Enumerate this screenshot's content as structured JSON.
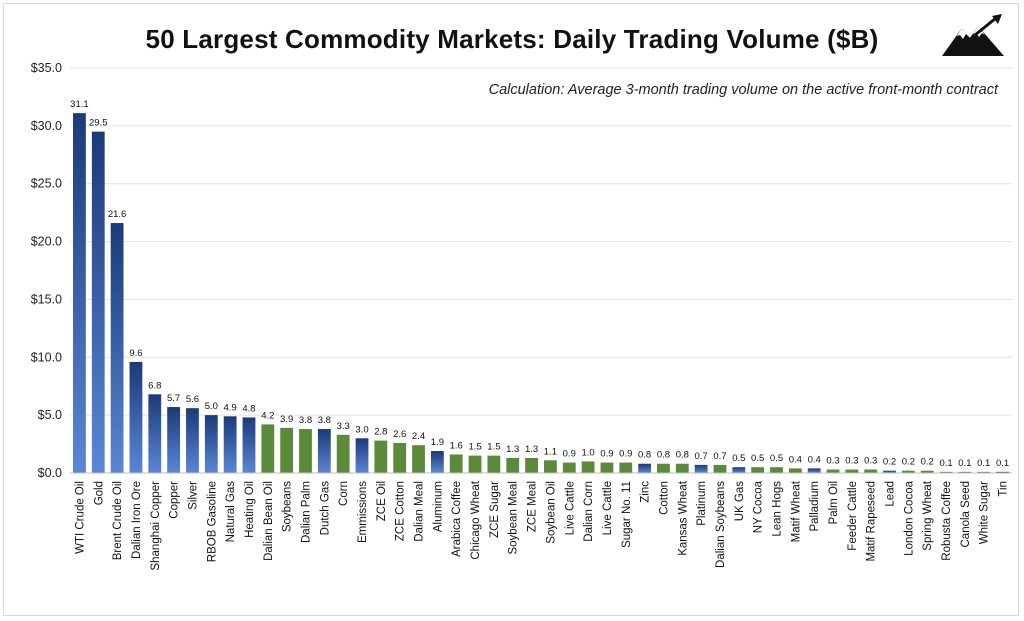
{
  "title": "50 Largest Commodity Markets: Daily Trading Volume ($B)",
  "subtitle": "Calculation: Average 3-month trading volume on the active front-month contract",
  "colors": {
    "blue_dark": "#1b3a78",
    "blue_light": "#5b86d6",
    "green": "#5a8a3a",
    "grid": "#e3e3e3",
    "axis": "#bfbfbf"
  },
  "logo_icon": "mountain-arrow-icon",
  "chart_data": {
    "type": "bar",
    "ylim": [
      0,
      35
    ],
    "yticks": [
      0,
      5,
      10,
      15,
      20,
      25,
      30,
      35
    ],
    "ytick_labels": [
      "$0.0",
      "$5.0",
      "$10.0",
      "$15.0",
      "$20.0",
      "$25.0",
      "$30.0",
      "$35.0"
    ],
    "grid": true,
    "categories": [
      "WTI Crude Oil",
      "Gold",
      "Brent Crude Oil",
      "Dalian Iron Ore",
      "Shanghai Copper",
      "Copper",
      "Silver",
      "RBOB Gasoline",
      "Natural Gas",
      "Heating Oil",
      "Dalian Bean Oil",
      "Soybeans",
      "Dalian Palm",
      "Dutch Gas",
      "Corn",
      "Emmissions",
      "ZCE Oil",
      "ZCE Cotton",
      "Dalian Meal",
      "Aluminum",
      "Arabica Coffee",
      "Chicago Wheat",
      "ZCE Sugar",
      "Soybean Meal",
      "ZCE Meal",
      "Soybean Oil",
      "Live Cattle",
      "Dalian Corn",
      "Live Cattle",
      "Sugar No. 11",
      "Zinc",
      "Cotton",
      "Kansas Wheat",
      "Platinum",
      "Dalian Soybeans",
      "UK Gas",
      "NY Cocoa",
      "Lean Hogs",
      "Matif Wheat",
      "Palladium",
      "Palm Oil",
      "Feeder Cattle",
      "Matif Rapeseed",
      "Lead",
      "London Cocoa",
      "Spring Wheat",
      "Robusta Coffee",
      "Canola Seed",
      "White Sugar",
      "Tin"
    ],
    "values": [
      31.1,
      29.5,
      21.6,
      9.6,
      6.8,
      5.7,
      5.6,
      5.0,
      4.9,
      4.8,
      4.2,
      3.9,
      3.8,
      3.8,
      3.3,
      3.0,
      2.8,
      2.6,
      2.4,
      1.9,
      1.6,
      1.5,
      1.5,
      1.3,
      1.3,
      1.1,
      0.9,
      1.0,
      0.9,
      0.9,
      0.8,
      0.8,
      0.8,
      0.7,
      0.7,
      0.5,
      0.5,
      0.5,
      0.4,
      0.4,
      0.3,
      0.3,
      0.3,
      0.2,
      0.2,
      0.2,
      0.1,
      0.1,
      0.1,
      0.1
    ],
    "value_labels": [
      "31.1",
      "29.5",
      "21.6",
      "9.6",
      "6.8",
      "5.7",
      "5.6",
      "5.0",
      "4.9",
      "4.8",
      "4.2",
      "3.9",
      "3.8",
      "3.8",
      "3.3",
      "3.0",
      "2.8",
      "2.6",
      "2.4",
      "1.9",
      "1.6",
      "1.5",
      "1.5",
      "1.3",
      "1.3",
      "1.1",
      "0.9",
      "1.0",
      "0.9",
      "0.9",
      "0.8",
      "0.8",
      "0.8",
      "0.7",
      "0.7",
      "0.5",
      "0.5",
      "0.5",
      "0.4",
      "0.4",
      "0.3",
      "0.3",
      "0.3",
      "0.2",
      "0.2",
      "0.2",
      "0.1",
      "0.1",
      "0.1",
      "0.1"
    ],
    "colors": [
      "blue",
      "blue",
      "blue",
      "blue",
      "blue",
      "blue",
      "blue",
      "blue",
      "blue",
      "blue",
      "green",
      "green",
      "green",
      "blue",
      "green",
      "blue",
      "green",
      "green",
      "green",
      "blue",
      "green",
      "green",
      "green",
      "green",
      "green",
      "green",
      "green",
      "green",
      "green",
      "green",
      "blue",
      "green",
      "green",
      "blue",
      "green",
      "blue",
      "green",
      "green",
      "green",
      "blue",
      "green",
      "green",
      "green",
      "blue",
      "green",
      "green",
      "green",
      "green",
      "green",
      "blue"
    ]
  }
}
